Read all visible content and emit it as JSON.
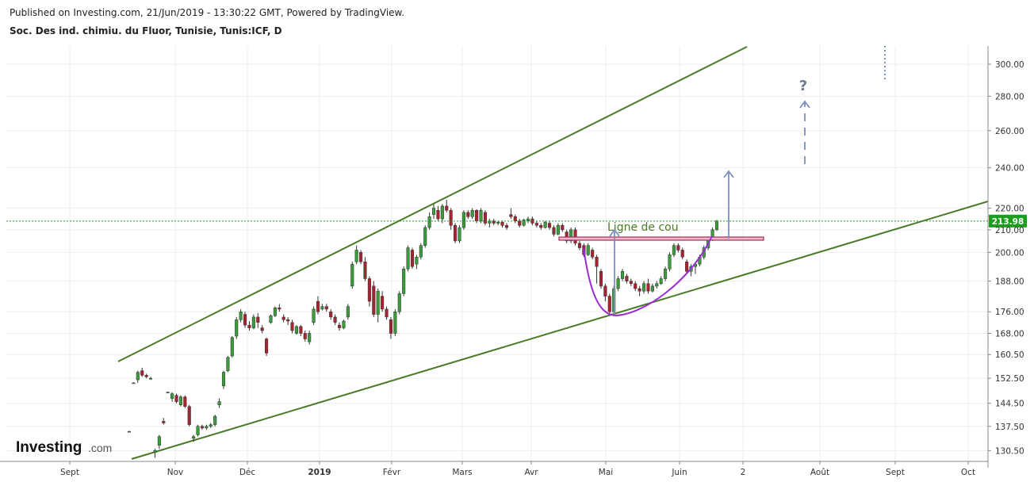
{
  "header": {
    "published": "Published on Investing.com, 21/Jun/2019 - 13:30:22 GMT, Powered by TradingView.",
    "instrument": "Soc. Des ind. chimiu. du Fluor, Tunisie, Tunis:ICF, D"
  },
  "logo": {
    "brand": "Investing",
    "suffix": ".com"
  },
  "chart_data": {
    "type": "candlestick",
    "title": "",
    "price_scale": "log",
    "ylim": [
      127.5,
      312
    ],
    "y_ticks": [
      "300.00",
      "280.00",
      "260.00",
      "240.00",
      "220.00",
      "210.00",
      "200.00",
      "188.00",
      "176.00",
      "168.00",
      "160.50",
      "152.50",
      "144.50",
      "137.50",
      "130.50"
    ],
    "x_ticks": [
      {
        "label": "Sept",
        "bold": false
      },
      {
        "label": "Nov",
        "bold": false
      },
      {
        "label": "Déc",
        "bold": false
      },
      {
        "label": "2019",
        "bold": true
      },
      {
        "label": "Févr",
        "bold": false
      },
      {
        "label": "Mars",
        "bold": false
      },
      {
        "label": "Avr",
        "bold": false
      },
      {
        "label": "Mai",
        "bold": false
      },
      {
        "label": "Juin",
        "bold": false
      },
      {
        "label": "2",
        "bold": false
      },
      {
        "label": "Août",
        "bold": false
      },
      {
        "label": "Sept",
        "bold": false
      },
      {
        "label": "Oct",
        "bold": false
      }
    ],
    "last_price": {
      "value": 213.98,
      "label": "213.98",
      "color": "#1e9e1e"
    },
    "candles": [
      {
        "o": 136.0,
        "h": 136.2,
        "l": 135.8,
        "c": 136.0
      },
      {
        "o": 151.0,
        "h": 151.2,
        "l": 150.8,
        "c": 151.0
      },
      {
        "o": 152.0,
        "h": 155.0,
        "l": 151.0,
        "c": 154.5
      },
      {
        "o": 155.0,
        "h": 156.0,
        "l": 153.0,
        "c": 153.5
      },
      {
        "o": 153.5,
        "h": 154.0,
        "l": 152.5,
        "c": 153.0
      },
      {
        "o": 152.5,
        "h": 153.0,
        "l": 152.0,
        "c": 152.5
      },
      {
        "o": 130.0,
        "h": 131.0,
        "l": 128.5,
        "c": 130.5
      },
      {
        "o": 132.0,
        "h": 135.0,
        "l": 131.0,
        "c": 134.5
      },
      {
        "o": 139.0,
        "h": 140.0,
        "l": 138.0,
        "c": 138.5
      },
      {
        "o": 148.0,
        "h": 148.2,
        "l": 147.8,
        "c": 148.0
      },
      {
        "o": 146.0,
        "h": 148.0,
        "l": 145.0,
        "c": 147.5
      },
      {
        "o": 147.0,
        "h": 147.5,
        "l": 144.5,
        "c": 145.0
      },
      {
        "o": 144.0,
        "h": 147.0,
        "l": 143.5,
        "c": 146.5
      },
      {
        "o": 146.5,
        "h": 147.0,
        "l": 143.0,
        "c": 143.5
      },
      {
        "o": 143.5,
        "h": 144.0,
        "l": 137.5,
        "c": 138.0
      },
      {
        "o": 134.0,
        "h": 135.0,
        "l": 133.0,
        "c": 134.5
      },
      {
        "o": 135.0,
        "h": 138.0,
        "l": 134.5,
        "c": 137.5
      },
      {
        "o": 137.5,
        "h": 138.0,
        "l": 136.5,
        "c": 137.0
      },
      {
        "o": 137.0,
        "h": 138.0,
        "l": 136.5,
        "c": 137.5
      },
      {
        "o": 137.5,
        "h": 138.5,
        "l": 137.0,
        "c": 138.0
      },
      {
        "o": 138.0,
        "h": 141.0,
        "l": 137.5,
        "c": 140.5
      },
      {
        "o": 144.0,
        "h": 146.0,
        "l": 143.0,
        "c": 145.0
      },
      {
        "o": 150.0,
        "h": 155.0,
        "l": 149.0,
        "c": 154.5
      },
      {
        "o": 155.0,
        "h": 160.0,
        "l": 154.5,
        "c": 159.5
      },
      {
        "o": 160.0,
        "h": 167.0,
        "l": 159.5,
        "c": 166.5
      },
      {
        "o": 167.0,
        "h": 174.0,
        "l": 166.0,
        "c": 173.0
      },
      {
        "o": 173.0,
        "h": 177.0,
        "l": 172.0,
        "c": 176.0
      },
      {
        "o": 175.0,
        "h": 176.0,
        "l": 170.0,
        "c": 171.0
      },
      {
        "o": 171.0,
        "h": 172.5,
        "l": 169.0,
        "c": 170.0
      },
      {
        "o": 170.0,
        "h": 175.0,
        "l": 169.5,
        "c": 174.0
      },
      {
        "o": 174.0,
        "h": 175.5,
        "l": 170.0,
        "c": 172.0
      },
      {
        "o": 170.0,
        "h": 171.0,
        "l": 168.0,
        "c": 169.0
      },
      {
        "o": 166.0,
        "h": 166.5,
        "l": 160.0,
        "c": 161.0
      },
      {
        "o": 172.0,
        "h": 175.0,
        "l": 171.5,
        "c": 174.5
      },
      {
        "o": 174.5,
        "h": 178.0,
        "l": 174.0,
        "c": 177.5
      },
      {
        "o": 177.5,
        "h": 179.0,
        "l": 176.0,
        "c": 177.0
      },
      {
        "o": 174.0,
        "h": 175.0,
        "l": 172.0,
        "c": 173.0
      },
      {
        "o": 173.0,
        "h": 174.0,
        "l": 171.0,
        "c": 172.5
      },
      {
        "o": 172.0,
        "h": 173.0,
        "l": 168.0,
        "c": 169.0
      },
      {
        "o": 168.0,
        "h": 171.0,
        "l": 167.5,
        "c": 170.5
      },
      {
        "o": 170.5,
        "h": 171.0,
        "l": 167.0,
        "c": 168.0
      },
      {
        "o": 168.0,
        "h": 169.0,
        "l": 165.0,
        "c": 166.0
      },
      {
        "o": 165.0,
        "h": 169.0,
        "l": 164.0,
        "c": 168.0
      },
      {
        "o": 172.0,
        "h": 178.0,
        "l": 171.0,
        "c": 177.0
      },
      {
        "o": 180.0,
        "h": 182.0,
        "l": 175.0,
        "c": 176.0
      },
      {
        "o": 177.0,
        "h": 179.0,
        "l": 176.5,
        "c": 178.0
      },
      {
        "o": 178.0,
        "h": 179.0,
        "l": 176.0,
        "c": 177.0
      },
      {
        "o": 176.0,
        "h": 177.0,
        "l": 173.0,
        "c": 174.0
      },
      {
        "o": 174.0,
        "h": 175.0,
        "l": 171.0,
        "c": 172.0
      },
      {
        "o": 171.0,
        "h": 172.0,
        "l": 169.0,
        "c": 170.0
      },
      {
        "o": 170.0,
        "h": 173.0,
        "l": 169.5,
        "c": 172.5
      },
      {
        "o": 174.0,
        "h": 179.0,
        "l": 173.0,
        "c": 178.0
      },
      {
        "o": 186.0,
        "h": 196.0,
        "l": 185.0,
        "c": 195.0
      },
      {
        "o": 196.0,
        "h": 203.0,
        "l": 195.0,
        "c": 201.0
      },
      {
        "o": 200.0,
        "h": 201.0,
        "l": 195.0,
        "c": 196.0
      },
      {
        "o": 196.0,
        "h": 198.0,
        "l": 188.0,
        "c": 189.0
      },
      {
        "o": 189.0,
        "h": 190.0,
        "l": 178.0,
        "c": 180.0
      },
      {
        "o": 186.0,
        "h": 188.0,
        "l": 174.0,
        "c": 175.0
      },
      {
        "o": 175.0,
        "h": 185.0,
        "l": 172.0,
        "c": 184.0
      },
      {
        "o": 182.0,
        "h": 184.0,
        "l": 176.0,
        "c": 177.0
      },
      {
        "o": 177.0,
        "h": 178.0,
        "l": 173.0,
        "c": 174.0
      },
      {
        "o": 173.0,
        "h": 174.0,
        "l": 166.0,
        "c": 168.0
      },
      {
        "o": 168.0,
        "h": 177.0,
        "l": 167.0,
        "c": 176.0
      },
      {
        "o": 176.0,
        "h": 184.0,
        "l": 175.0,
        "c": 183.0
      },
      {
        "o": 183.0,
        "h": 194.0,
        "l": 182.0,
        "c": 193.0
      },
      {
        "o": 193.0,
        "h": 203.0,
        "l": 192.0,
        "c": 202.0
      },
      {
        "o": 201.0,
        "h": 202.0,
        "l": 193.0,
        "c": 194.0
      },
      {
        "o": 195.0,
        "h": 199.0,
        "l": 193.0,
        "c": 198.0
      },
      {
        "o": 198.0,
        "h": 204.0,
        "l": 197.0,
        "c": 203.0
      },
      {
        "o": 203.0,
        "h": 212.0,
        "l": 202.0,
        "c": 211.0
      },
      {
        "o": 211.0,
        "h": 218.0,
        "l": 210.0,
        "c": 216.0
      },
      {
        "o": 217.0,
        "h": 222.0,
        "l": 215.0,
        "c": 220.0
      },
      {
        "o": 219.0,
        "h": 221.0,
        "l": 214.0,
        "c": 215.0
      },
      {
        "o": 215.0,
        "h": 222.0,
        "l": 213.0,
        "c": 221.0
      },
      {
        "o": 221.0,
        "h": 224.0,
        "l": 218.0,
        "c": 219.0
      },
      {
        "o": 219.0,
        "h": 220.0,
        "l": 210.0,
        "c": 212.0
      },
      {
        "o": 212.0,
        "h": 213.0,
        "l": 204.0,
        "c": 205.0
      },
      {
        "o": 205.0,
        "h": 212.0,
        "l": 204.0,
        "c": 211.0
      },
      {
        "o": 211.0,
        "h": 219.0,
        "l": 210.0,
        "c": 218.0
      },
      {
        "o": 218.0,
        "h": 219.0,
        "l": 215.0,
        "c": 216.0
      },
      {
        "o": 216.0,
        "h": 220.0,
        "l": 215.0,
        "c": 219.0
      },
      {
        "o": 219.0,
        "h": 219.5,
        "l": 213.0,
        "c": 214.0
      },
      {
        "o": 214.0,
        "h": 220.0,
        "l": 213.0,
        "c": 219.0
      },
      {
        "o": 218.0,
        "h": 219.0,
        "l": 212.0,
        "c": 213.0
      },
      {
        "o": 213.0,
        "h": 215.0,
        "l": 211.0,
        "c": 214.0
      },
      {
        "o": 214.0,
        "h": 215.0,
        "l": 212.0,
        "c": 213.0
      },
      {
        "o": 213.0,
        "h": 214.0,
        "l": 212.0,
        "c": 213.5
      },
      {
        "o": 213.5,
        "h": 214.0,
        "l": 211.0,
        "c": 212.0
      },
      {
        "o": 212.0,
        "h": 213.0,
        "l": 210.0,
        "c": 211.0
      },
      {
        "o": 217.0,
        "h": 220.0,
        "l": 215.0,
        "c": 216.0
      },
      {
        "o": 216.0,
        "h": 217.0,
        "l": 213.0,
        "c": 214.0
      },
      {
        "o": 214.0,
        "h": 215.0,
        "l": 211.0,
        "c": 212.0
      },
      {
        "o": 212.0,
        "h": 215.0,
        "l": 211.5,
        "c": 214.5
      },
      {
        "o": 214.0,
        "h": 216.0,
        "l": 213.0,
        "c": 215.0
      },
      {
        "o": 215.0,
        "h": 216.0,
        "l": 212.0,
        "c": 213.0
      },
      {
        "o": 213.0,
        "h": 214.0,
        "l": 211.0,
        "c": 212.0
      },
      {
        "o": 212.0,
        "h": 213.0,
        "l": 210.0,
        "c": 211.0
      },
      {
        "o": 211.0,
        "h": 214.0,
        "l": 210.5,
        "c": 213.5
      },
      {
        "o": 213.0,
        "h": 214.0,
        "l": 210.0,
        "c": 211.0
      },
      {
        "o": 211.0,
        "h": 212.0,
        "l": 207.0,
        "c": 208.0
      },
      {
        "o": 208.0,
        "h": 213.0,
        "l": 207.5,
        "c": 212.0
      },
      {
        "o": 212.0,
        "h": 213.0,
        "l": 209.0,
        "c": 210.0
      },
      {
        "o": 209.0,
        "h": 210.0,
        "l": 204.0,
        "c": 205.0
      },
      {
        "o": 205.0,
        "h": 211.0,
        "l": 204.0,
        "c": 210.0
      },
      {
        "o": 210.0,
        "h": 211.0,
        "l": 203.0,
        "c": 204.0
      },
      {
        "o": 204.0,
        "h": 205.0,
        "l": 201.0,
        "c": 202.0
      },
      {
        "o": 203.0,
        "h": 204.0,
        "l": 198.0,
        "c": 199.0
      },
      {
        "o": 199.0,
        "h": 204.0,
        "l": 198.5,
        "c": 203.0
      },
      {
        "o": 201.0,
        "h": 202.0,
        "l": 197.0,
        "c": 198.0
      },
      {
        "o": 198.0,
        "h": 199.0,
        "l": 187.0,
        "c": 194.0
      },
      {
        "o": 192.0,
        "h": 193.0,
        "l": 185.0,
        "c": 186.0
      },
      {
        "o": 186.0,
        "h": 187.0,
        "l": 180.0,
        "c": 182.0
      },
      {
        "o": 182.0,
        "h": 183.0,
        "l": 175.0,
        "c": 176.0
      },
      {
        "o": 176.0,
        "h": 186.0,
        "l": 175.5,
        "c": 185.0
      },
      {
        "o": 185.0,
        "h": 190.0,
        "l": 184.0,
        "c": 189.0
      },
      {
        "o": 189.0,
        "h": 193.0,
        "l": 188.0,
        "c": 192.0
      },
      {
        "o": 190.0,
        "h": 191.0,
        "l": 187.0,
        "c": 188.0
      },
      {
        "o": 188.0,
        "h": 189.0,
        "l": 186.0,
        "c": 187.0
      },
      {
        "o": 187.0,
        "h": 188.0,
        "l": 184.0,
        "c": 185.0
      },
      {
        "o": 185.0,
        "h": 186.0,
        "l": 182.0,
        "c": 184.0
      },
      {
        "o": 184.0,
        "h": 188.0,
        "l": 183.0,
        "c": 187.0
      },
      {
        "o": 187.0,
        "h": 189.0,
        "l": 183.0,
        "c": 184.0
      },
      {
        "o": 184.0,
        "h": 187.0,
        "l": 183.5,
        "c": 186.0
      },
      {
        "o": 186.0,
        "h": 188.0,
        "l": 185.0,
        "c": 187.0
      },
      {
        "o": 187.0,
        "h": 190.0,
        "l": 186.5,
        "c": 189.0
      },
      {
        "o": 189.0,
        "h": 194.0,
        "l": 188.0,
        "c": 193.0
      },
      {
        "o": 193.0,
        "h": 200.0,
        "l": 192.0,
        "c": 199.0
      },
      {
        "o": 199.0,
        "h": 204.0,
        "l": 198.0,
        "c": 203.0
      },
      {
        "o": 203.0,
        "h": 204.0,
        "l": 200.0,
        "c": 201.0
      },
      {
        "o": 201.0,
        "h": 202.0,
        "l": 197.0,
        "c": 198.0
      },
      {
        "o": 196.0,
        "h": 197.0,
        "l": 191.0,
        "c": 192.0
      },
      {
        "o": 192.0,
        "h": 195.0,
        "l": 190.0,
        "c": 194.0
      },
      {
        "o": 194.0,
        "h": 196.0,
        "l": 191.0,
        "c": 195.0
      },
      {
        "o": 195.0,
        "h": 199.0,
        "l": 194.0,
        "c": 198.0
      },
      {
        "o": 198.0,
        "h": 203.0,
        "l": 197.0,
        "c": 202.0
      },
      {
        "o": 202.0,
        "h": 207.0,
        "l": 201.0,
        "c": 206.0
      },
      {
        "o": 206.0,
        "h": 211.0,
        "l": 205.0,
        "c": 210.0
      },
      {
        "o": 210.0,
        "h": 214.5,
        "l": 209.5,
        "c": 214.0
      }
    ],
    "annotations": {
      "neckline_label": "Ligne de cou",
      "question_mark": "?"
    },
    "colors": {
      "up": "#3a9c3a",
      "down": "#a8232f",
      "trendline": "#4a7a28",
      "projection": "#7a8fbf",
      "cup": "#9a2cd6",
      "neckline_fill": "#f2b5cc",
      "neckline_stroke": "#a0325a"
    }
  }
}
